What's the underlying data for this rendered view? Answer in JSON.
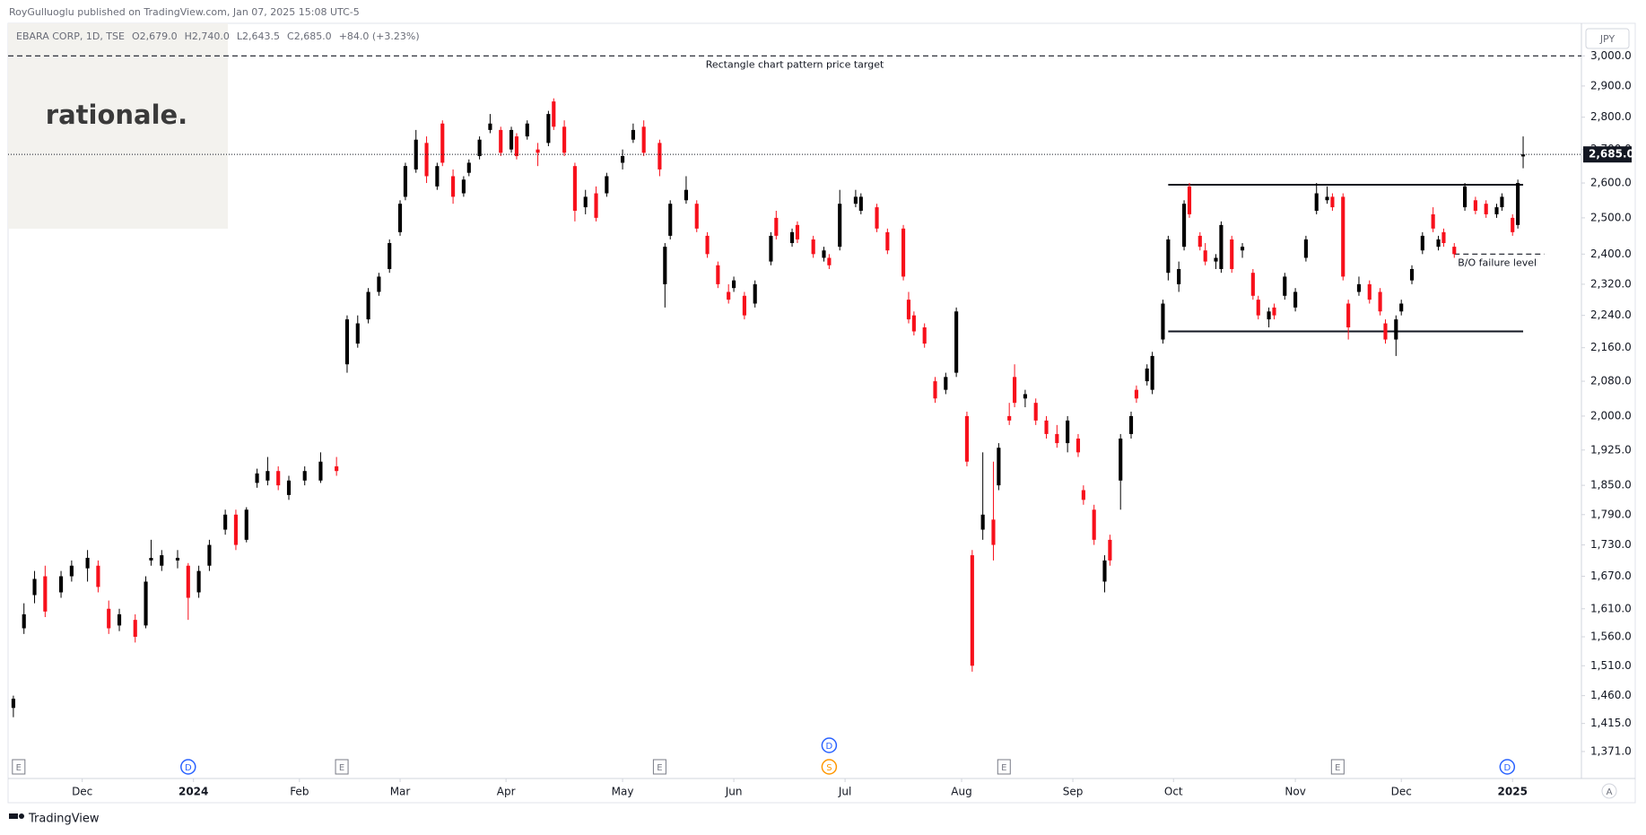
{
  "header": {
    "publisher": "RoyGulluoglu published on TradingView.com, Jan 07, 2025 15:08 UTC-5"
  },
  "legend": {
    "symbol": "EBARA CORP, 1D, TSE",
    "open": "O2,679.0",
    "high": "H2,740.0",
    "low": "L2,643.5",
    "close": "C2,685.0",
    "change": "+84.0 (+3.23%)"
  },
  "watermark": "rationale.",
  "currency": "JPY",
  "footer": "TradingView",
  "scale_mode": "A",
  "chart_data": {
    "type": "candlestick",
    "log_scale": true,
    "up_color": "#000000",
    "down_color": "#f7101b",
    "xlim": [
      -1,
      296
    ],
    "ylim": [
      1330,
      3112
    ],
    "xticks": [
      {
        "value": 13,
        "label": "Dec"
      },
      {
        "value": 34,
        "label": "2024"
      },
      {
        "value": 54,
        "label": "Feb"
      },
      {
        "value": 73,
        "label": "Mar"
      },
      {
        "value": 93,
        "label": "Apr"
      },
      {
        "value": 115,
        "label": "May"
      },
      {
        "value": 136,
        "label": "Jun"
      },
      {
        "value": 157,
        "label": "Jul"
      },
      {
        "value": 179,
        "label": "Aug"
      },
      {
        "value": 200,
        "label": "Sep"
      },
      {
        "value": 219,
        "label": "Oct"
      },
      {
        "value": 242,
        "label": "Nov"
      },
      {
        "value": 262,
        "label": "Dec"
      },
      {
        "value": 283,
        "label": "2025"
      }
    ],
    "yticks": [
      {
        "value": 1371,
        "label": "1,371.0"
      },
      {
        "value": 1415,
        "label": "1,415.0"
      },
      {
        "value": 1460,
        "label": "1,460.0"
      },
      {
        "value": 1510,
        "label": "1,510.0"
      },
      {
        "value": 1560,
        "label": "1,560.0"
      },
      {
        "value": 1610,
        "label": "1,610.0"
      },
      {
        "value": 1670,
        "label": "1,670.0"
      },
      {
        "value": 1730,
        "label": "1,730.0"
      },
      {
        "value": 1790,
        "label": "1,790.0"
      },
      {
        "value": 1850,
        "label": "1,850.0"
      },
      {
        "value": 1925,
        "label": "1,925.0"
      },
      {
        "value": 2000,
        "label": "2,000.0"
      },
      {
        "value": 2080,
        "label": "2,080.0"
      },
      {
        "value": 2160,
        "label": "2,160.0"
      },
      {
        "value": 2240,
        "label": "2,240.0"
      },
      {
        "value": 2320,
        "label": "2,320.0"
      },
      {
        "value": 2400,
        "label": "2,400.0"
      },
      {
        "value": 2500,
        "label": "2,500.0"
      },
      {
        "value": 2600,
        "label": "2,600.0"
      },
      {
        "value": 2700,
        "label": "2,700.0"
      },
      {
        "value": 2800,
        "label": "2,800.0"
      },
      {
        "value": 2900,
        "label": "2,900.0"
      },
      {
        "value": 3000,
        "label": "3,000.0"
      }
    ],
    "last_price": {
      "value": 2685,
      "label": "2,685.0"
    },
    "ohlc": [
      [
        0,
        1440,
        1460,
        1425,
        1455
      ],
      [
        2,
        1575,
        1620,
        1565,
        1600
      ],
      [
        4,
        1635,
        1680,
        1620,
        1665
      ],
      [
        6,
        1670,
        1690,
        1595,
        1605
      ],
      [
        9,
        1640,
        1680,
        1630,
        1670
      ],
      [
        11,
        1670,
        1700,
        1660,
        1690
      ],
      [
        14,
        1685,
        1720,
        1660,
        1705
      ],
      [
        16,
        1690,
        1700,
        1640,
        1650
      ],
      [
        18,
        1610,
        1625,
        1565,
        1575
      ],
      [
        20,
        1580,
        1610,
        1570,
        1600
      ],
      [
        23,
        1590,
        1600,
        1550,
        1560
      ],
      [
        25,
        1580,
        1670,
        1575,
        1660
      ],
      [
        26,
        1700,
        1740,
        1690,
        1705
      ],
      [
        28,
        1690,
        1720,
        1680,
        1710
      ],
      [
        31,
        1700,
        1720,
        1685,
        1705
      ],
      [
        33,
        1690,
        1695,
        1590,
        1630
      ],
      [
        35,
        1640,
        1690,
        1630,
        1680
      ],
      [
        37,
        1690,
        1740,
        1680,
        1730
      ],
      [
        40,
        1760,
        1800,
        1750,
        1790
      ],
      [
        42,
        1790,
        1800,
        1720,
        1730
      ],
      [
        44,
        1740,
        1805,
        1735,
        1800
      ],
      [
        46,
        1855,
        1885,
        1845,
        1875
      ],
      [
        48,
        1860,
        1910,
        1850,
        1880
      ],
      [
        50,
        1880,
        1890,
        1840,
        1850
      ],
      [
        52,
        1830,
        1870,
        1820,
        1860
      ],
      [
        55,
        1860,
        1890,
        1850,
        1880
      ],
      [
        58,
        1860,
        1920,
        1855,
        1900
      ],
      [
        61,
        1890,
        1910,
        1870,
        1880
      ],
      [
        63,
        2120,
        2240,
        2100,
        2230
      ],
      [
        65,
        2170,
        2240,
        2160,
        2220
      ],
      [
        67,
        2230,
        2310,
        2220,
        2300
      ],
      [
        69,
        2300,
        2350,
        2290,
        2340
      ],
      [
        71,
        2360,
        2440,
        2350,
        2430
      ],
      [
        73,
        2460,
        2550,
        2450,
        2540
      ],
      [
        74,
        2560,
        2660,
        2550,
        2650
      ],
      [
        76,
        2640,
        2760,
        2630,
        2730
      ],
      [
        78,
        2720,
        2740,
        2600,
        2620
      ],
      [
        80,
        2590,
        2660,
        2580,
        2650
      ],
      [
        81,
        2780,
        2790,
        2650,
        2660
      ],
      [
        83,
        2620,
        2640,
        2540,
        2560
      ],
      [
        85,
        2570,
        2620,
        2560,
        2610
      ],
      [
        86,
        2630,
        2670,
        2620,
        2660
      ],
      [
        88,
        2680,
        2740,
        2670,
        2730
      ],
      [
        90,
        2760,
        2810,
        2750,
        2780
      ],
      [
        92,
        2760,
        2770,
        2680,
        2690
      ],
      [
        94,
        2700,
        2770,
        2690,
        2760
      ],
      [
        95,
        2740,
        2750,
        2670,
        2680
      ],
      [
        97,
        2740,
        2790,
        2730,
        2780
      ],
      [
        99,
        2700,
        2720,
        2650,
        2690
      ],
      [
        101,
        2720,
        2820,
        2710,
        2810
      ],
      [
        102,
        2850,
        2860,
        2760,
        2770
      ],
      [
        104,
        2770,
        2790,
        2680,
        2690
      ],
      [
        106,
        2650,
        2660,
        2490,
        2520
      ],
      [
        108,
        2530,
        2580,
        2510,
        2560
      ],
      [
        110,
        2570,
        2590,
        2490,
        2500
      ],
      [
        112,
        2570,
        2630,
        2560,
        2620
      ],
      [
        115,
        2660,
        2700,
        2640,
        2680
      ],
      [
        117,
        2730,
        2780,
        2720,
        2760
      ],
      [
        119,
        2770,
        2790,
        2680,
        2690
      ],
      [
        122,
        2720,
        2730,
        2620,
        2640
      ],
      [
        123,
        2320,
        2430,
        2260,
        2420
      ],
      [
        124,
        2450,
        2550,
        2440,
        2540
      ],
      [
        127,
        2550,
        2620,
        2540,
        2580
      ],
      [
        129,
        2540,
        2550,
        2460,
        2470
      ],
      [
        131,
        2450,
        2460,
        2390,
        2400
      ],
      [
        133,
        2370,
        2380,
        2310,
        2320
      ],
      [
        135,
        2300,
        2320,
        2270,
        2280
      ],
      [
        136,
        2310,
        2340,
        2300,
        2330
      ],
      [
        138,
        2290,
        2300,
        2230,
        2240
      ],
      [
        140,
        2270,
        2330,
        2260,
        2320
      ],
      [
        143,
        2380,
        2460,
        2370,
        2450
      ],
      [
        144,
        2500,
        2520,
        2440,
        2450
      ],
      [
        147,
        2430,
        2470,
        2420,
        2460
      ],
      [
        148,
        2480,
        2490,
        2430,
        2440
      ],
      [
        151,
        2440,
        2450,
        2390,
        2400
      ],
      [
        153,
        2390,
        2420,
        2380,
        2410
      ],
      [
        154,
        2390,
        2400,
        2360,
        2370
      ],
      [
        156,
        2420,
        2580,
        2410,
        2540
      ],
      [
        159,
        2540,
        2580,
        2530,
        2560
      ],
      [
        160,
        2520,
        2570,
        2510,
        2560
      ],
      [
        163,
        2530,
        2540,
        2460,
        2470
      ],
      [
        165,
        2460,
        2470,
        2400,
        2410
      ],
      [
        168,
        2470,
        2480,
        2330,
        2340
      ],
      [
        169,
        2280,
        2300,
        2220,
        2230
      ],
      [
        170,
        2240,
        2250,
        2190,
        2200
      ],
      [
        172,
        2210,
        2220,
        2160,
        2170
      ],
      [
        174,
        2080,
        2090,
        2030,
        2040
      ],
      [
        176,
        2060,
        2100,
        2050,
        2090
      ],
      [
        178,
        2100,
        2260,
        2090,
        2250
      ],
      [
        180,
        2000,
        2010,
        1890,
        1900
      ],
      [
        181,
        1710,
        1720,
        1500,
        1510
      ],
      [
        183,
        1760,
        1920,
        1740,
        1790
      ],
      [
        185,
        1780,
        1900,
        1700,
        1730
      ],
      [
        186,
        1850,
        1940,
        1840,
        1930
      ],
      [
        188,
        2000,
        2030,
        1980,
        1990
      ],
      [
        189,
        2090,
        2120,
        2020,
        2030
      ],
      [
        191,
        2040,
        2060,
        2020,
        2050
      ],
      [
        193,
        2030,
        2040,
        1980,
        1990
      ],
      [
        195,
        1990,
        2000,
        1950,
        1960
      ],
      [
        197,
        1960,
        1980,
        1930,
        1940
      ],
      [
        199,
        1940,
        2000,
        1920,
        1990
      ],
      [
        201,
        1950,
        1960,
        1910,
        1920
      ],
      [
        202,
        1840,
        1850,
        1810,
        1820
      ],
      [
        204,
        1800,
        1810,
        1730,
        1740
      ],
      [
        206,
        1660,
        1710,
        1640,
        1700
      ],
      [
        207,
        1740,
        1750,
        1690,
        1700
      ],
      [
        209,
        1860,
        1960,
        1800,
        1950
      ],
      [
        211,
        1960,
        2010,
        1950,
        2000
      ],
      [
        212,
        2060,
        2070,
        2030,
        2040
      ],
      [
        214,
        2080,
        2120,
        2070,
        2110
      ],
      [
        215,
        2060,
        2150,
        2050,
        2140
      ],
      [
        217,
        2180,
        2280,
        2170,
        2270
      ],
      [
        218,
        2350,
        2450,
        2330,
        2440
      ],
      [
        220,
        2320,
        2380,
        2300,
        2360
      ],
      [
        221,
        2420,
        2550,
        2410,
        2540
      ],
      [
        222,
        2590,
        2600,
        2500,
        2510
      ],
      [
        224,
        2450,
        2460,
        2410,
        2420
      ],
      [
        225,
        2410,
        2430,
        2370,
        2380
      ],
      [
        227,
        2380,
        2400,
        2360,
        2390
      ],
      [
        228,
        2360,
        2490,
        2350,
        2480
      ],
      [
        230,
        2440,
        2450,
        2350,
        2360
      ],
      [
        232,
        2410,
        2430,
        2390,
        2420
      ],
      [
        234,
        2350,
        2360,
        2280,
        2290
      ],
      [
        235,
        2280,
        2290,
        2230,
        2240
      ],
      [
        237,
        2230,
        2260,
        2210,
        2250
      ],
      [
        238,
        2260,
        2270,
        2230,
        2240
      ],
      [
        240,
        2290,
        2350,
        2280,
        2340
      ],
      [
        242,
        2260,
        2310,
        2250,
        2300
      ],
      [
        244,
        2390,
        2450,
        2380,
        2440
      ],
      [
        246,
        2520,
        2600,
        2510,
        2570
      ],
      [
        248,
        2550,
        2590,
        2540,
        2560
      ],
      [
        249,
        2560,
        2570,
        2520,
        2530
      ],
      [
        251,
        2560,
        2570,
        2330,
        2340
      ],
      [
        252,
        2270,
        2280,
        2180,
        2210
      ],
      [
        254,
        2300,
        2340,
        2290,
        2320
      ],
      [
        256,
        2320,
        2330,
        2270,
        2280
      ],
      [
        258,
        2300,
        2310,
        2240,
        2250
      ],
      [
        259,
        2220,
        2230,
        2170,
        2180
      ],
      [
        261,
        2180,
        2240,
        2140,
        2230
      ],
      [
        262,
        2250,
        2280,
        2240,
        2270
      ],
      [
        264,
        2330,
        2370,
        2320,
        2360
      ],
      [
        266,
        2410,
        2460,
        2400,
        2450
      ],
      [
        268,
        2510,
        2530,
        2460,
        2470
      ],
      [
        269,
        2420,
        2450,
        2410,
        2440
      ],
      [
        270,
        2460,
        2470,
        2420,
        2430
      ],
      [
        272,
        2420,
        2430,
        2390,
        2400
      ],
      [
        274,
        2530,
        2600,
        2520,
        2590
      ],
      [
        276,
        2550,
        2560,
        2510,
        2520
      ],
      [
        278,
        2540,
        2550,
        2500,
        2510
      ],
      [
        280,
        2510,
        2540,
        2500,
        2530
      ],
      [
        281,
        2530,
        2570,
        2520,
        2560
      ],
      [
        283,
        2500,
        2510,
        2450,
        2460
      ],
      [
        284,
        2480,
        2610,
        2470,
        2600
      ],
      [
        285,
        2679,
        2740,
        2643.5,
        2685
      ]
    ],
    "annotations": [
      {
        "text": "Rectangle chart pattern price target",
        "value": 3000,
        "x": [
          -1,
          296
        ],
        "style": "dashed"
      },
      {
        "value": 2595,
        "x": [
          218,
          285
        ],
        "style": "solid"
      },
      {
        "value": 2200,
        "x": [
          218,
          285
        ],
        "style": "solid"
      },
      {
        "text": "B/O failure level",
        "value": 2400,
        "x": [
          272,
          289
        ],
        "style": "dashed"
      }
    ],
    "events": [
      {
        "label": "E",
        "x": 1,
        "shape": "square",
        "color": "#787b86"
      },
      {
        "label": "D",
        "x": 33,
        "shape": "circle",
        "color": "#2962ff"
      },
      {
        "label": "E",
        "x": 62,
        "shape": "square",
        "color": "#787b86"
      },
      {
        "label": "E",
        "x": 122,
        "shape": "square",
        "color": "#787b86"
      },
      {
        "label": "S",
        "x": 154,
        "shape": "circle",
        "color": "#ff9800"
      },
      {
        "label": "D",
        "x": 154,
        "shape": "circle",
        "color": "#2962ff"
      },
      {
        "label": "E",
        "x": 187,
        "shape": "square",
        "color": "#787b86"
      },
      {
        "label": "E",
        "x": 250,
        "shape": "square",
        "color": "#787b86"
      },
      {
        "label": "D",
        "x": 282,
        "shape": "circle",
        "color": "#2962ff"
      }
    ]
  }
}
